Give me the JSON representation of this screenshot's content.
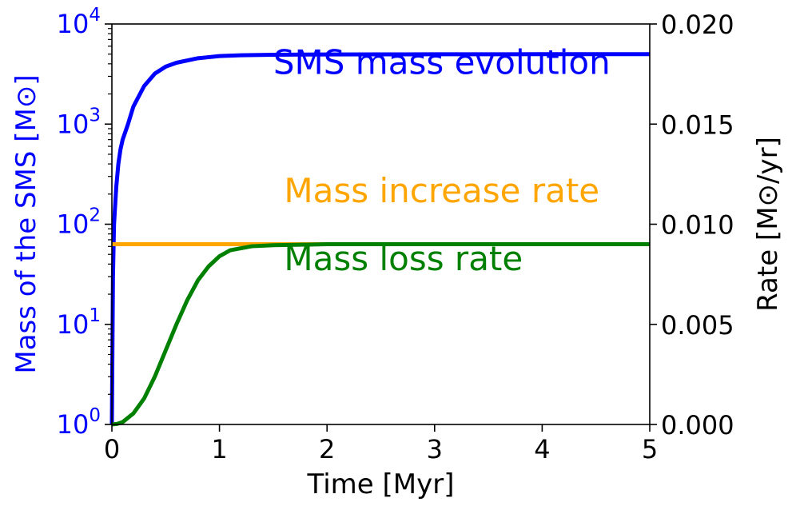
{
  "chart_data": {
    "type": "line",
    "x": {
      "label": "Time [Myr]",
      "range": [
        0,
        5
      ],
      "ticks": [
        0,
        1,
        2,
        3,
        4,
        5
      ],
      "tick_labels": [
        "0",
        "1",
        "2",
        "3",
        "4",
        "5"
      ]
    },
    "y_left": {
      "label": "Mass of the SMS [M⊙]",
      "scale": "log",
      "range": [
        1,
        10000
      ],
      "ticks": [
        1,
        10,
        100,
        1000,
        10000
      ],
      "tick_labels": [
        {
          "base": "10",
          "exp": "0"
        },
        {
          "base": "10",
          "exp": "1"
        },
        {
          "base": "10",
          "exp": "2"
        },
        {
          "base": "10",
          "exp": "3"
        },
        {
          "base": "10",
          "exp": "4"
        }
      ],
      "color": "#0000ff"
    },
    "y_right": {
      "label": "Rate [M⊙/yr]",
      "scale": "linear",
      "range": [
        0,
        0.02
      ],
      "ticks": [
        0,
        0.005,
        0.01,
        0.015,
        0.02
      ],
      "tick_labels": [
        "0.000",
        "0.005",
        "0.010",
        "0.015",
        "0.020"
      ],
      "color": "#000000"
    },
    "series": [
      {
        "name": "SMS mass evolution",
        "axis": "left",
        "color": "#0000ff",
        "x": [
          0,
          0.01,
          0.02,
          0.04,
          0.06,
          0.08,
          0.1,
          0.15,
          0.2,
          0.3,
          0.4,
          0.5,
          0.6,
          0.8,
          1.0,
          1.2,
          1.5,
          2.0,
          2.5,
          3.0,
          3.5,
          4.0,
          4.5,
          5.0
        ],
        "values": [
          1,
          30,
          100,
          230,
          400,
          560,
          700,
          1000,
          1500,
          2400,
          3200,
          3750,
          4100,
          4550,
          4780,
          4870,
          4930,
          4960,
          4975,
          4982,
          4988,
          4992,
          4995,
          5000
        ]
      },
      {
        "name": "Mass increase rate",
        "axis": "right",
        "color": "#ffa500",
        "x": [
          0,
          5
        ],
        "values": [
          0.009,
          0.009
        ]
      },
      {
        "name": "Mass loss rate",
        "axis": "right",
        "color": "#008000",
        "x": [
          0,
          0.05,
          0.1,
          0.2,
          0.3,
          0.4,
          0.5,
          0.6,
          0.7,
          0.8,
          0.9,
          1.0,
          1.1,
          1.2,
          1.3,
          1.5,
          2.0,
          2.5,
          3.0,
          3.5,
          4.0,
          4.5,
          5.0
        ],
        "values": [
          0,
          3e-05,
          0.00012,
          0.00055,
          0.0013,
          0.0024,
          0.0037,
          0.005,
          0.0062,
          0.0072,
          0.0079,
          0.0084,
          0.0087,
          0.0088,
          0.0089,
          0.00895,
          0.009,
          0.009,
          0.009,
          0.009,
          0.009,
          0.009,
          0.009
        ]
      }
    ],
    "annotations": [
      {
        "text": "SMS mass evolution",
        "color": "#0000ff",
        "at_x": 1.5,
        "at_y_right": 0.0175
      },
      {
        "text": "Mass increase rate",
        "color": "#ffa500",
        "at_x": 1.6,
        "at_y_right": 0.0111
      },
      {
        "text": "Mass loss rate",
        "color": "#008000",
        "at_x": 1.6,
        "at_y_right": 0.0077
      }
    ]
  }
}
